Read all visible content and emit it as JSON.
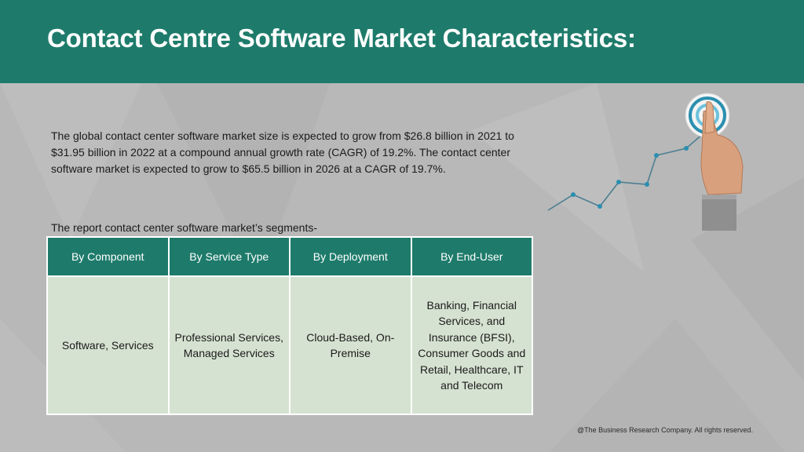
{
  "header": {
    "title": "Contact Centre Software Market Characteristics:"
  },
  "intro": {
    "text": "The global contact center software market size is expected to grow from $26.8 billion in 2021 to $31.95 billion in 2022 at a compound annual growth rate (CAGR) of 19.2%. The contact center software market is expected to grow to $65.5 billion in 2026 at a CAGR of 19.7%."
  },
  "segments": {
    "label": "The report contact center software market’s segments-",
    "columns": [
      "By Component",
      "By Service Type",
      "By Deployment",
      "By End-User"
    ],
    "values": [
      "Software, Services",
      "Professional Services, Managed Services",
      "Cloud-Based, On-Premise",
      "Banking, Financial Services, and Insurance (BFSI), Consumer Goods and Retail, Healthcare, IT and Telecom"
    ]
  },
  "illustration": {
    "icon": "growth-chart-target-icon",
    "accent": "#2a8fb0"
  },
  "footer": {
    "copyright": "@The Business Research Company. All rights reserved."
  },
  "colors": {
    "header_bg": "#1e7b6b",
    "page_bg": "#b8b8b8",
    "cell_bg": "#d6e2d1"
  }
}
